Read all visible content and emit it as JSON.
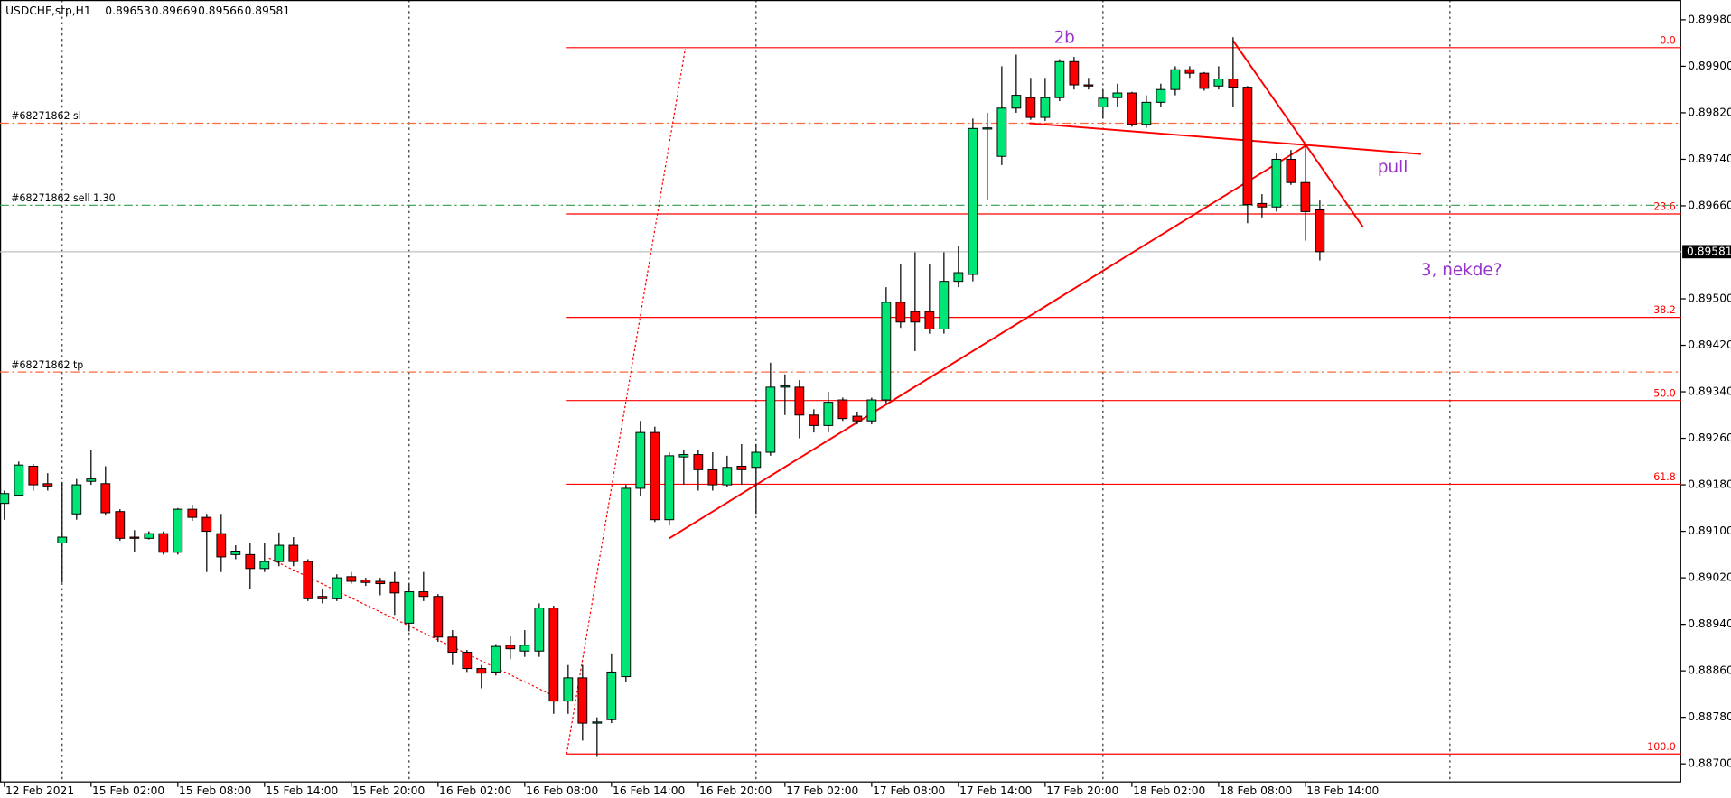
{
  "chart_data": {
    "type": "candlestick",
    "title": "USDCHF,stp,H1",
    "categories": [
      "12 Feb 2021",
      null,
      null,
      null,
      null,
      null,
      "15 Feb 02:00",
      null,
      null,
      null,
      null,
      null,
      "15 Feb 08:00",
      null,
      null,
      null,
      null,
      null,
      "15 Feb 14:00",
      null,
      null,
      null,
      null,
      null,
      "15 Feb 20:00",
      null,
      null,
      null,
      null,
      null,
      "16 Feb 02:00",
      null,
      null,
      null,
      null,
      null,
      "16 Feb 08:00",
      null,
      null,
      null,
      null,
      null,
      "16 Feb 14:00",
      null,
      null,
      null,
      null,
      null,
      "16 Feb 20:00",
      null,
      null,
      null,
      null,
      null,
      "17 Feb 02:00",
      null,
      null,
      null,
      null,
      null,
      "17 Feb 08:00",
      null,
      null,
      null,
      null,
      null,
      "17 Feb 14:00",
      null,
      null,
      null,
      null,
      null,
      "17 Feb 20:00",
      null,
      null,
      null,
      null,
      null,
      "18 Feb 02:00",
      null,
      null,
      null,
      null,
      null,
      "18 Feb 08:00",
      null,
      null,
      null,
      null,
      null,
      "18 Feb 14:00",
      null
    ],
    "open": [
      0.89148,
      0.89162,
      0.89212,
      0.89182,
      0.8908,
      0.8913,
      0.89186,
      0.89182,
      0.89134,
      0.8909,
      0.89088,
      0.89096,
      0.89064,
      0.89138,
      0.89124,
      0.89096,
      0.8906,
      0.8906,
      0.89036,
      0.89048,
      0.89076,
      0.89048,
      0.88988,
      0.88984,
      0.89022,
      0.89016,
      0.89014,
      0.89012,
      0.88942,
      0.88996,
      0.88988,
      0.88918,
      0.88892,
      0.88864,
      0.88858,
      0.88904,
      0.88894,
      0.88894,
      0.88968,
      0.88808,
      0.88848,
      0.8877,
      0.88776,
      0.8885,
      0.89174,
      0.8927,
      0.8912,
      0.89228,
      0.89232,
      0.89206,
      0.8918,
      0.89212,
      0.8921,
      0.89236,
      0.89348,
      0.89348,
      0.893,
      0.89282,
      0.89326,
      0.89298,
      0.8929,
      0.89326,
      0.89494,
      0.89478,
      0.89478,
      0.89448,
      0.8953,
      0.89542,
      0.89792,
      0.89745,
      0.89828,
      0.89846,
      0.89812,
      0.89846,
      0.89908,
      0.89868,
      0.8983,
      0.89846,
      0.89854,
      0.898,
      0.89838,
      0.8986,
      0.89894,
      0.89888,
      0.89866,
      0.89878,
      0.89864,
      0.89664,
      0.89658,
      0.8974,
      0.897,
      0.89653
    ],
    "high": [
      0.8917,
      0.8922,
      0.89216,
      0.892,
      0.89185,
      0.8919,
      0.8924,
      0.89212,
      0.89138,
      0.89102,
      0.891,
      0.891,
      0.8914,
      0.89146,
      0.8913,
      0.8913,
      0.89076,
      0.8908,
      0.8908,
      0.89098,
      0.8909,
      0.89052,
      0.89,
      0.89026,
      0.8903,
      0.8902,
      0.8902,
      0.8903,
      0.8901,
      0.8903,
      0.88992,
      0.8893,
      0.88896,
      0.8887,
      0.88906,
      0.8892,
      0.8893,
      0.88976,
      0.88972,
      0.8887,
      0.8887,
      0.8878,
      0.8889,
      0.8918,
      0.8929,
      0.8928,
      0.89236,
      0.8924,
      0.8924,
      0.89236,
      0.8923,
      0.8925,
      0.8925,
      0.8939,
      0.8937,
      0.8936,
      0.8931,
      0.8934,
      0.8933,
      0.89306,
      0.8933,
      0.8952,
      0.8956,
      0.8958,
      0.8956,
      0.8958,
      0.8959,
      0.8981,
      0.8982,
      0.899,
      0.8992,
      0.8988,
      0.8988,
      0.89912,
      0.89916,
      0.8988,
      0.8986,
      0.8987,
      0.89856,
      0.8985,
      0.8987,
      0.899,
      0.899,
      0.8989,
      0.899,
      0.8995,
      0.89866,
      0.8968,
      0.8975,
      0.89756,
      0.8977,
      0.89669
    ],
    "low": [
      0.8912,
      0.8916,
      0.8917,
      0.8917,
      0.89012,
      0.8912,
      0.8918,
      0.89128,
      0.89084,
      0.89064,
      0.89086,
      0.8906,
      0.8906,
      0.89118,
      0.8903,
      0.8903,
      0.89052,
      0.89,
      0.8903,
      0.8904,
      0.8904,
      0.8898,
      0.88976,
      0.8898,
      0.8901,
      0.89006,
      0.8899,
      0.88956,
      0.88928,
      0.8898,
      0.8891,
      0.8887,
      0.88858,
      0.8883,
      0.88852,
      0.8888,
      0.88884,
      0.88884,
      0.88786,
      0.88786,
      0.8874,
      0.88712,
      0.8877,
      0.8884,
      0.8916,
      0.89116,
      0.8911,
      0.8918,
      0.8917,
      0.8917,
      0.89176,
      0.8918,
      0.8913,
      0.8923,
      0.893,
      0.8926,
      0.8927,
      0.8927,
      0.8929,
      0.89284,
      0.89284,
      0.8932,
      0.8945,
      0.8941,
      0.8944,
      0.8944,
      0.8952,
      0.8953,
      0.8967,
      0.8973,
      0.8982,
      0.89808,
      0.89806,
      0.8984,
      0.8986,
      0.8986,
      0.8981,
      0.8983,
      0.89796,
      0.89794,
      0.8983,
      0.8985,
      0.8988,
      0.89858,
      0.8986,
      0.8983,
      0.8963,
      0.8964,
      0.8965,
      0.89696,
      0.896,
      0.89566
    ],
    "close": [
      0.89165,
      0.89214,
      0.8918,
      0.89178,
      0.8909,
      0.8918,
      0.8919,
      0.89132,
      0.89088,
      0.89088,
      0.89096,
      0.89064,
      0.89138,
      0.89124,
      0.891,
      0.89056,
      0.89066,
      0.89036,
      0.89048,
      0.89076,
      0.89048,
      0.88984,
      0.88984,
      0.8902,
      0.89014,
      0.89012,
      0.8901,
      0.88994,
      0.88996,
      0.88988,
      0.88918,
      0.88892,
      0.88864,
      0.88856,
      0.88902,
      0.88898,
      0.88904,
      0.88968,
      0.88808,
      0.88848,
      0.8877,
      0.88772,
      0.88858,
      0.89174,
      0.8927,
      0.8912,
      0.8923,
      0.89232,
      0.89206,
      0.8918,
      0.8921,
      0.89206,
      0.89236,
      0.89348,
      0.8935,
      0.893,
      0.89282,
      0.89322,
      0.89294,
      0.8929,
      0.89326,
      0.89494,
      0.8946,
      0.8946,
      0.89448,
      0.8953,
      0.89545,
      0.89793,
      0.89794,
      0.89828,
      0.8985,
      0.89812,
      0.89846,
      0.89908,
      0.89868,
      0.89866,
      0.89845,
      0.89854,
      0.898,
      0.89838,
      0.8986,
      0.89894,
      0.89888,
      0.89862,
      0.89878,
      0.89864,
      0.89662,
      0.89658,
      0.8974,
      0.897,
      0.8965,
      0.89581
    ],
    "up_color": "#00e676",
    "down_color": "#ff0000",
    "xlim": [
      -0.3,
      116
    ],
    "ylim": [
      0.88668,
      0.90014
    ],
    "yticks": [
      {
        "value": 0.8998,
        "label": "0.89980"
      },
      {
        "value": 0.899,
        "label": "0.89900"
      },
      {
        "value": 0.8982,
        "label": "0.89820"
      },
      {
        "value": 0.8974,
        "label": "0.89740"
      },
      {
        "value": 0.8966,
        "label": "0.89660"
      },
      {
        "value": 0.895,
        "label": "0.89500"
      },
      {
        "value": 0.8942,
        "label": "0.89420"
      },
      {
        "value": 0.8934,
        "label": "0.89340"
      },
      {
        "value": 0.8926,
        "label": "0.89260"
      },
      {
        "value": 0.8918,
        "label": "0.89180"
      },
      {
        "value": 0.891,
        "label": "0.89100"
      },
      {
        "value": 0.8902,
        "label": "0.89020"
      },
      {
        "value": 0.8894,
        "label": "0.88940"
      },
      {
        "value": 0.8886,
        "label": "0.88860"
      },
      {
        "value": 0.8878,
        "label": "0.88780"
      },
      {
        "value": 0.887,
        "label": "0.88700"
      }
    ],
    "day_separators": [
      4,
      28,
      52,
      76,
      100
    ],
    "fib_start": 38.9,
    "fib_color": "#ff0000",
    "fib_levels": [
      {
        "label": "0.0",
        "value": 0.89932
      },
      {
        "label": "23.6",
        "value": 0.89646
      },
      {
        "label": "38.2",
        "value": 0.89468
      },
      {
        "label": "50.0",
        "value": 0.89325
      },
      {
        "label": "61.8",
        "value": 0.89181
      },
      {
        "label": "100.0",
        "value": 0.88717
      }
    ],
    "orders": [
      {
        "label": "#68271862 sl",
        "value": 0.89802,
        "color": "#ff6a3d"
      },
      {
        "label": "#68271862 sell 1.30",
        "value": 0.89661,
        "color": "#2e9e4f"
      },
      {
        "label": "#68271862 tp",
        "value": 0.89374,
        "color": "#ff6a3d"
      }
    ],
    "trendlines": [
      {
        "x": [
          46,
          90.2
        ],
        "y": [
          0.89088,
          0.89766
        ],
        "dotted": false
      },
      {
        "x": [
          70.9,
          98
        ],
        "y": [
          0.89802,
          0.89749
        ],
        "dotted": false
      },
      {
        "x": [
          85,
          94
        ],
        "y": [
          0.89944,
          0.89623
        ],
        "dotted": false
      },
      {
        "x": [
          38.9,
          47.1
        ],
        "y": [
          0.88717,
          0.8993
        ],
        "dotted": true
      },
      {
        "x": [
          18.3,
          38
        ],
        "y": [
          0.89054,
          0.88817
        ],
        "dotted": true
      }
    ],
    "trend_color": "#ff0000",
    "annotations": [
      {
        "text": "2b",
        "x": 72.6,
        "y": 0.89948
      },
      {
        "text": "pull",
        "x": 95,
        "y": 0.89725
      },
      {
        "text": "3, nekde?",
        "x": 98,
        "y": 0.89548
      }
    ]
  }
}
